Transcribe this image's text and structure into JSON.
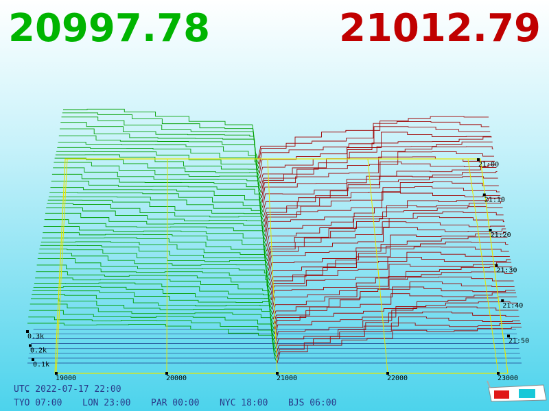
{
  "header": {
    "bid_price": "20997.78",
    "ask_price": "21012.79"
  },
  "price_axis": {
    "ticks": [
      19000,
      20000,
      21000,
      22000,
      23000
    ]
  },
  "time_axis": {
    "ticks": [
      "21:00",
      "21:10",
      "21:20",
      "21:30",
      "21:40",
      "21:50"
    ]
  },
  "depth_axis": {
    "ticks": [
      "0.3k",
      "0.2k",
      "0.1k"
    ]
  },
  "footer": {
    "utc": "UTC 2022-07-17 22:00",
    "clocks": [
      "TYO 07:00",
      "LON 23:00",
      "PAR 00:00",
      "NYC 18:00",
      "BJS 06:00"
    ]
  }
}
